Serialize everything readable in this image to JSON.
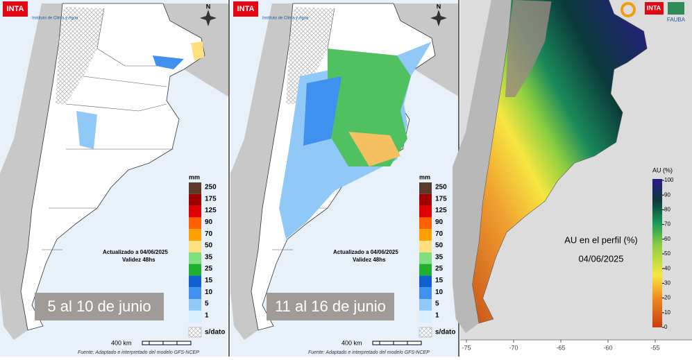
{
  "panels": [
    {
      "logo": "INTA",
      "institute": "Instituto de Clima y Agua",
      "north": "N",
      "legend": {
        "unit": "mm",
        "levels": [
          250,
          175,
          125,
          90,
          70,
          50,
          35,
          25,
          15,
          10,
          5,
          1
        ],
        "nodata": "s/dato"
      },
      "updated": "Actualizado a 04/06/2025",
      "validity": "Validez 48hs",
      "period": "5 al 10 de junio",
      "scale": "400 km",
      "source": "Fuente: Adaptado e interpretado del modelo GFS-NCEP"
    },
    {
      "logo": "INTA",
      "institute": "Instituto de Clima y Agua",
      "north": "N",
      "legend": {
        "unit": "mm",
        "levels": [
          250,
          175,
          125,
          90,
          70,
          50,
          35,
          25,
          15,
          10,
          5,
          1
        ],
        "nodata": "s/dato"
      },
      "updated": "Actualizado a 04/06/2025",
      "validity": "Validez 48hs",
      "period": "11 al 16 de junio",
      "scale": "400 km",
      "source": "Fuente: Adaptado e interpretado del modelo GFS-NCEP"
    }
  ],
  "soil_panel": {
    "logos": [
      "INTA",
      "FAUBA"
    ],
    "legend": {
      "title": "AU (%)",
      "ticks": [
        100,
        90,
        80,
        70,
        60,
        50,
        40,
        30,
        20,
        10,
        0
      ]
    },
    "caption": "AU en el perfil (%)",
    "date": "04/06/2025",
    "xticks": [
      -75,
      -70,
      -65,
      -60,
      -55
    ]
  }
}
